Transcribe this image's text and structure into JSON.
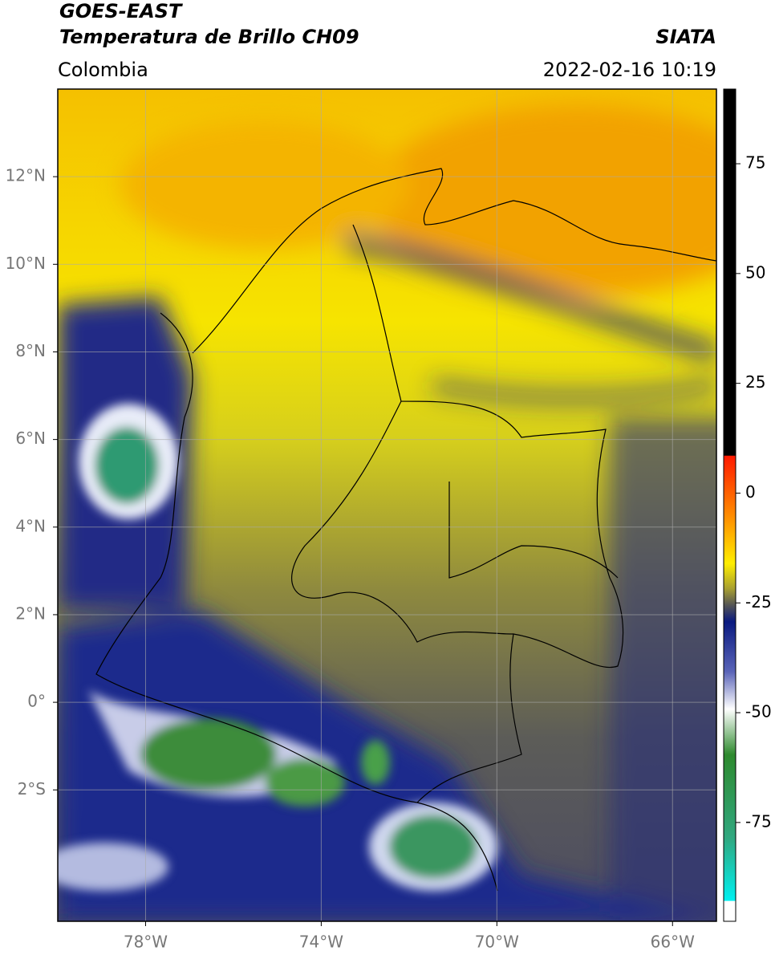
{
  "header": {
    "title": "GOES-EAST",
    "subtitle": "Temperatura de Brillo CH09",
    "source": "SIATA",
    "region": "Colombia",
    "datetime": "2022-02-16 10:19"
  },
  "map": {
    "lon_range": [
      -80,
      -65
    ],
    "lat_range": [
      -5,
      14
    ],
    "grid": true,
    "lon_ticks": [
      {
        "value": -78,
        "label": "78°W"
      },
      {
        "value": -74,
        "label": "74°W"
      },
      {
        "value": -70,
        "label": "70°W"
      },
      {
        "value": -66,
        "label": "66°W"
      }
    ],
    "lat_ticks": [
      {
        "value": 12,
        "label": "12°N"
      },
      {
        "value": 10,
        "label": "10°N"
      },
      {
        "value": 8,
        "label": "8°N"
      },
      {
        "value": 6,
        "label": "6°N"
      },
      {
        "value": 4,
        "label": "4°N"
      },
      {
        "value": 2,
        "label": "2°N"
      },
      {
        "value": 0,
        "label": "0°"
      },
      {
        "value": -2,
        "label": "2°S"
      }
    ]
  },
  "colorbar": {
    "range": [
      -97.5,
      92
    ],
    "ticks": [
      75,
      50,
      25,
      0,
      -25,
      -50,
      -75
    ]
  }
}
